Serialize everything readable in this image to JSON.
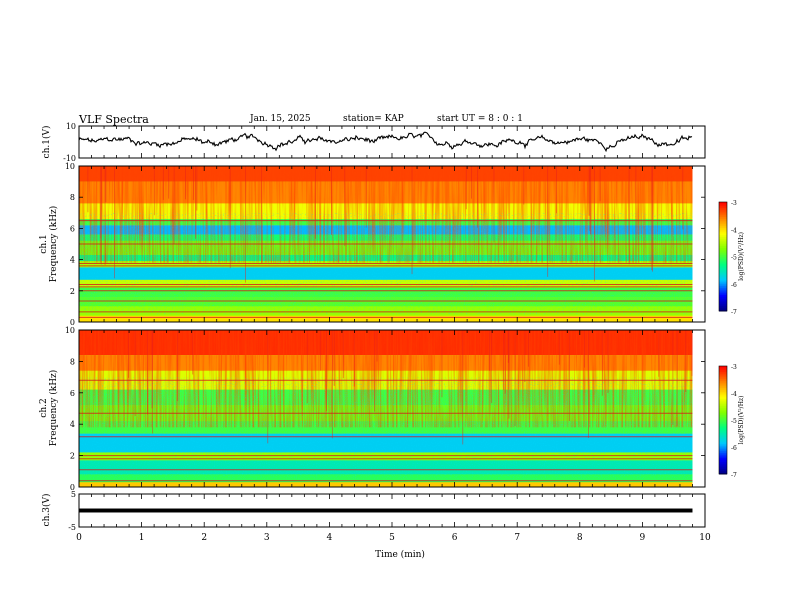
{
  "header": {
    "title": "VLF Spectra",
    "date": "Jan. 15, 2025",
    "station": "station= KAP",
    "start_ut": "start  UT  =   8  : 0  : 1"
  },
  "colors": {
    "axis": "#000000",
    "colormap": [
      "#000080",
      "#0000ff",
      "#00c8ff",
      "#00ff80",
      "#80ff00",
      "#ffff00",
      "#ff8000",
      "#ff0000",
      "#ffffff"
    ]
  },
  "chart_data": [
    {
      "type": "line",
      "id": "ch1-waveform",
      "ylabel": "ch.1(V)",
      "ylim": [
        -10,
        10
      ],
      "y_ticks": [
        "10",
        "-10"
      ],
      "xlim": [
        0,
        10
      ],
      "x_extent_min": 9.8,
      "description_of_series": "noisy waveform fluctuating roughly between -5 and 6 V",
      "series_mean": 0.5,
      "series_amplitude": 4.5
    },
    {
      "type": "heatmap",
      "id": "ch1-spectrogram",
      "ylabel": "ch.1\nFrequency (kHz)",
      "ylim": [
        0,
        10
      ],
      "y_ticks": [
        "0",
        "2",
        "4",
        "6",
        "8",
        "10"
      ],
      "xlim": [
        0,
        10
      ],
      "x_extent_min": 9.8,
      "colorbar": {
        "label": "log(PSD)(V²/Hz)",
        "range": [
          -7,
          -3
        ],
        "ticks": [
          "-3",
          "-4",
          "-5",
          "-6",
          "-7"
        ]
      },
      "bands_khz_log_psd": [
        {
          "f": [
            9.0,
            10.0
          ],
          "v": -3.3
        },
        {
          "f": [
            7.6,
            9.0
          ],
          "v": -3.6
        },
        {
          "f": [
            6.6,
            7.6
          ],
          "v": -4.2
        },
        {
          "f": [
            6.2,
            6.6
          ],
          "v": -5.0
        },
        {
          "f": [
            5.6,
            6.2
          ],
          "v": -5.9
        },
        {
          "f": [
            5.2,
            5.6
          ],
          "v": -5.2
        },
        {
          "f": [
            4.3,
            5.2
          ],
          "v": -4.8
        },
        {
          "f": [
            3.9,
            4.3
          ],
          "v": -5.3
        },
        {
          "f": [
            3.5,
            3.9
          ],
          "v": -4.5
        },
        {
          "f": [
            2.7,
            3.5
          ],
          "v": -5.8
        },
        {
          "f": [
            2.2,
            2.7
          ],
          "v": -4.4
        },
        {
          "f": [
            1.6,
            2.2
          ],
          "v": -5.0
        },
        {
          "f": [
            1.0,
            1.6
          ],
          "v": -4.9
        },
        {
          "f": [
            0.4,
            1.0
          ],
          "v": -4.6
        },
        {
          "f": [
            0.0,
            0.4
          ],
          "v": -4.0
        }
      ],
      "lines_khz": [
        0.3,
        0.65,
        1.35,
        2.0,
        2.25,
        2.4,
        3.6,
        3.75,
        5.0,
        6.5
      ]
    },
    {
      "type": "heatmap",
      "id": "ch2-spectrogram",
      "ylabel": "ch.2\nFrequency (kHz)",
      "ylim": [
        0,
        10
      ],
      "y_ticks": [
        "0",
        "2",
        "4",
        "6",
        "8",
        "10"
      ],
      "xlim": [
        0,
        10
      ],
      "x_extent_min": 9.8,
      "colorbar": {
        "label": "log(PSD)(V²/Hz)",
        "range": [
          -7,
          -3
        ],
        "ticks": [
          "-3",
          "-4",
          "-5",
          "-6",
          "-7"
        ]
      },
      "bands_khz_log_psd": [
        {
          "f": [
            8.4,
            10.0
          ],
          "v": -3.2
        },
        {
          "f": [
            7.4,
            8.4
          ],
          "v": -3.6
        },
        {
          "f": [
            6.2,
            7.4
          ],
          "v": -4.3
        },
        {
          "f": [
            5.2,
            6.2
          ],
          "v": -5.0
        },
        {
          "f": [
            4.2,
            5.2
          ],
          "v": -4.8
        },
        {
          "f": [
            3.4,
            4.2
          ],
          "v": -5.0
        },
        {
          "f": [
            2.2,
            3.4
          ],
          "v": -5.8
        },
        {
          "f": [
            1.7,
            2.2
          ],
          "v": -4.6
        },
        {
          "f": [
            0.8,
            1.7
          ],
          "v": -5.5
        },
        {
          "f": [
            0.3,
            0.8
          ],
          "v": -5.1
        },
        {
          "f": [
            0.0,
            0.3
          ],
          "v": -3.9
        }
      ],
      "lines_khz": [
        0.4,
        1.1,
        1.8,
        2.0,
        3.2,
        4.7,
        6.8
      ]
    },
    {
      "type": "line",
      "id": "ch3-waveform",
      "ylabel": "ch.3(V)",
      "ylim": [
        -5,
        5
      ],
      "y_ticks": [
        "5",
        "-5"
      ],
      "xlim": [
        0,
        10
      ],
      "x_extent_min": 9.8,
      "series_mean": 0.0,
      "series_amplitude": 0.6,
      "xlabel": "Time (min)",
      "x_ticks": [
        "0",
        "1",
        "2",
        "3",
        "4",
        "5",
        "6",
        "7",
        "8",
        "9",
        "10"
      ]
    }
  ]
}
